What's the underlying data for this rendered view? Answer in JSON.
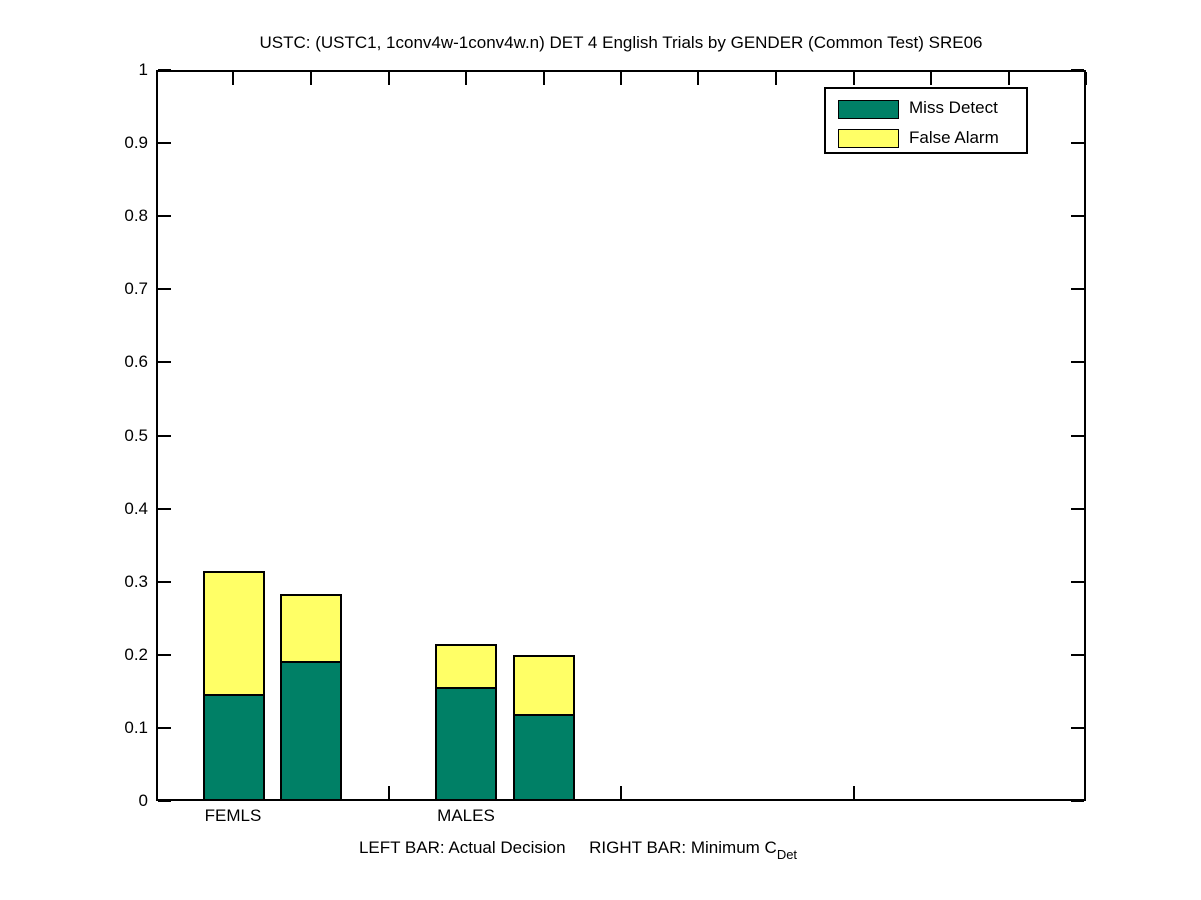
{
  "title": "USTC: (USTC1, 1conv4w-1conv4w.n) DET 4 English Trials by GENDER (Common Test) SRE06",
  "legend": {
    "items": [
      {
        "label": "Miss Detect",
        "color": "#008066"
      },
      {
        "label": "False Alarm",
        "color": "#ffff66"
      }
    ]
  },
  "footnote": {
    "text": "LEFT BAR: Actual Decision     RIGHT BAR: Minimum C",
    "subscript": "Det"
  },
  "chart_data": {
    "type": "bar",
    "stacked": true,
    "title": "USTC: (USTC1, 1conv4w-1conv4w.n) DET 4 English Trials by GENDER (Common Test) SRE06",
    "xlabel": "",
    "ylabel": "",
    "ylim": [
      0,
      1
    ],
    "grid": false,
    "legend_position": "upper right",
    "bar_meaning": {
      "left_bar": "Actual Decision",
      "right_bar": "Minimum C_Det"
    },
    "series_names": [
      "Miss Detect",
      "False Alarm"
    ],
    "series_colors": [
      "#008066",
      "#ffff66"
    ],
    "groups": [
      {
        "label": "FEMLS",
        "bars": [
          {
            "kind": "actual_decision",
            "miss_detect": 0.147,
            "false_alarm": 0.167,
            "total": 0.314
          },
          {
            "kind": "minimum_cdet",
            "miss_detect": 0.192,
            "false_alarm": 0.091,
            "total": 0.283
          }
        ]
      },
      {
        "label": "MALES",
        "bars": [
          {
            "kind": "actual_decision",
            "miss_detect": 0.156,
            "false_alarm": 0.059,
            "total": 0.215
          },
          {
            "kind": "minimum_cdet",
            "miss_detect": 0.119,
            "false_alarm": 0.081,
            "total": 0.2
          }
        ]
      }
    ],
    "yticks": [
      0,
      0.1,
      0.2,
      0.3,
      0.4,
      0.5,
      0.6,
      0.7,
      0.8,
      0.9,
      1
    ],
    "ytick_labels": [
      "0",
      "0.1",
      "0.2",
      "0.3",
      "0.4",
      "0.5",
      "0.6",
      "0.7",
      "0.8",
      "0.9",
      "1"
    ],
    "xticks_bottom": [
      1.5,
      2.5,
      3.5
    ],
    "xticks_top": [
      0.8333,
      1.1667,
      1.5,
      1.8333,
      2.1667,
      2.5,
      2.8333,
      3.1667,
      3.5,
      3.8333,
      4.1667,
      4.5
    ],
    "xlim": [
      0.5,
      4.5
    ]
  }
}
